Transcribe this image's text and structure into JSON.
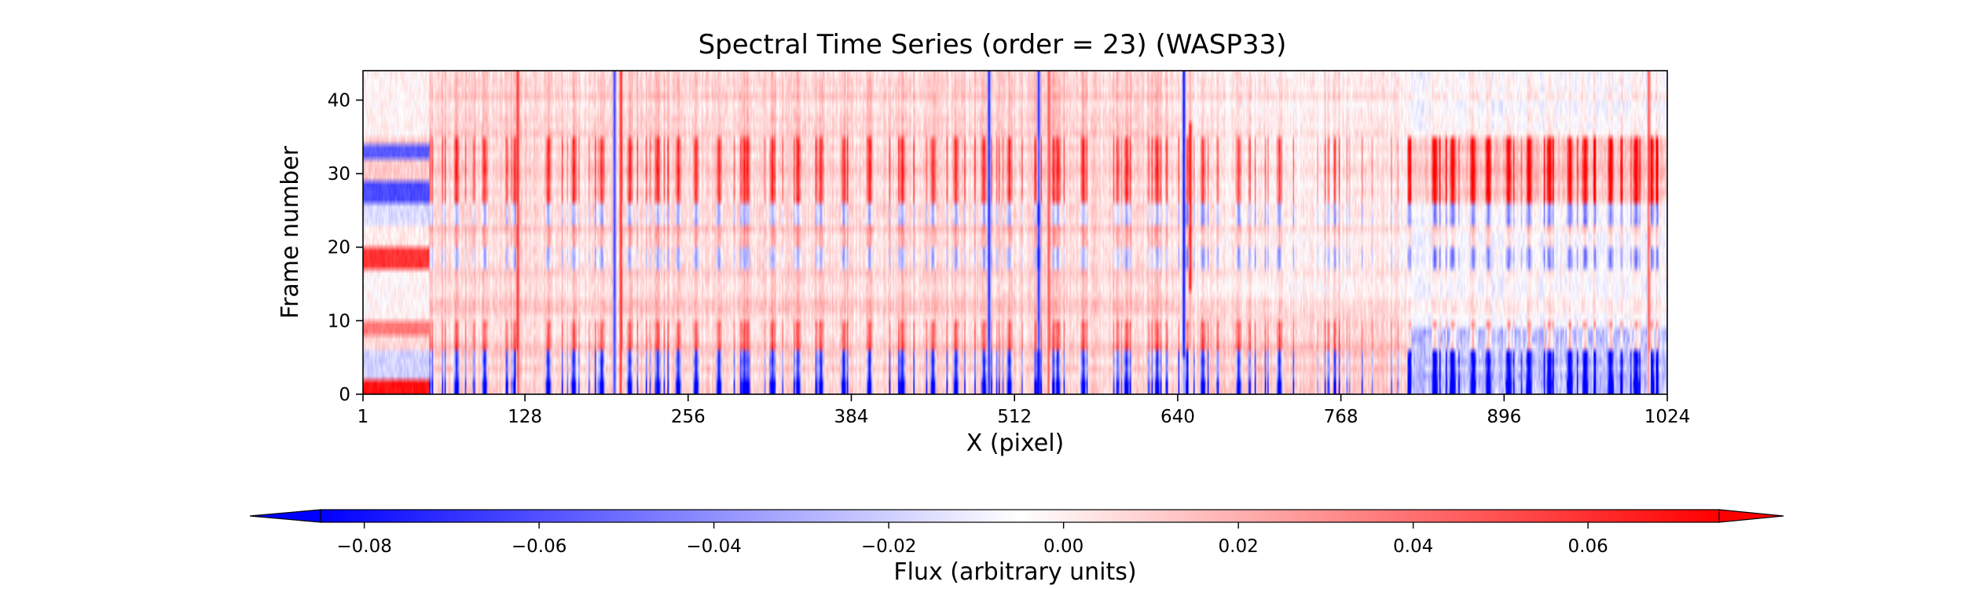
{
  "chart_data": {
    "type": "heatmap",
    "title": "Spectral Time Series (order = 23) (WASP33)",
    "xlabel": "X (pixel)",
    "ylabel": "Frame number",
    "xlim": [
      1,
      1024
    ],
    "ylim": [
      0,
      44
    ],
    "xticks": [
      1,
      128,
      256,
      384,
      512,
      640,
      768,
      896,
      1024
    ],
    "yticks": [
      0,
      10,
      20,
      30,
      40
    ],
    "n_frames": 44,
    "n_pixels": 1024,
    "colormap": "bwr",
    "color_min": "#0000ff",
    "color_mid": "#ffffff",
    "color_max": "#ff0000",
    "colorbar": {
      "label": "Flux (arbitrary units)",
      "range": [
        -0.085,
        0.075
      ],
      "ticks": [
        -0.08,
        -0.06,
        -0.04,
        -0.02,
        0.0,
        0.02,
        0.04,
        0.06
      ],
      "tick_labels": [
        "−0.08",
        "−0.06",
        "−0.04",
        "−0.02",
        "0.00",
        "0.02",
        "0.04",
        "0.06"
      ],
      "orientation": "horizontal",
      "extend": "both"
    },
    "features": {
      "absorption_columns_x": [
        52,
        74,
        96,
        120,
        146,
        166,
        188,
        210,
        232,
        248,
        262,
        280,
        300,
        322,
        342,
        360,
        378,
        398,
        424,
        448,
        466,
        488,
        508,
        530,
        546,
        566,
        600,
        624,
        648,
        660,
        688,
        720,
        842,
        856,
        872,
        884,
        900,
        916,
        932,
        948,
        960,
        980,
        1000,
        1012
      ],
      "strong_lines": [
        {
          "x": 122,
          "value": 0.06
        },
        {
          "x": 203,
          "value": 0.06
        },
        {
          "x": 198,
          "value": -0.07
        },
        {
          "x": 492,
          "value": -0.08
        },
        {
          "x": 531,
          "value": -0.08
        },
        {
          "x": 539,
          "value": 0.05
        },
        {
          "x": 645,
          "value": -0.085
        },
        {
          "x": 650,
          "value": 0.07
        },
        {
          "x": 1010,
          "value": 0.05
        }
      ],
      "frame_bands": [
        {
          "frames": [
            0,
            1
          ],
          "value": -0.05
        },
        {
          "frames": [
            2,
            5
          ],
          "value": -0.025
        },
        {
          "frames": [
            6,
            9
          ],
          "value": 0.02
        },
        {
          "frames": [
            10,
            16
          ],
          "value": 0.005
        },
        {
          "frames": [
            17,
            19
          ],
          "value": -0.02
        },
        {
          "frames": [
            20,
            22
          ],
          "value": 0.01
        },
        {
          "frames": [
            23,
            25
          ],
          "value": -0.02
        },
        {
          "frames": [
            26,
            34
          ],
          "value": 0.025
        },
        {
          "frames": [
            35,
            43
          ],
          "value": 0.005
        }
      ],
      "left_edge_block": {
        "x_range": [
          1,
          52
        ],
        "frames": [
          [
            0,
            1,
            0.07
          ],
          [
            8,
            9,
            0.04
          ],
          [
            17,
            19,
            0.06
          ],
          [
            26,
            28,
            -0.06
          ],
          [
            32,
            33,
            -0.055
          ]
        ]
      }
    }
  }
}
